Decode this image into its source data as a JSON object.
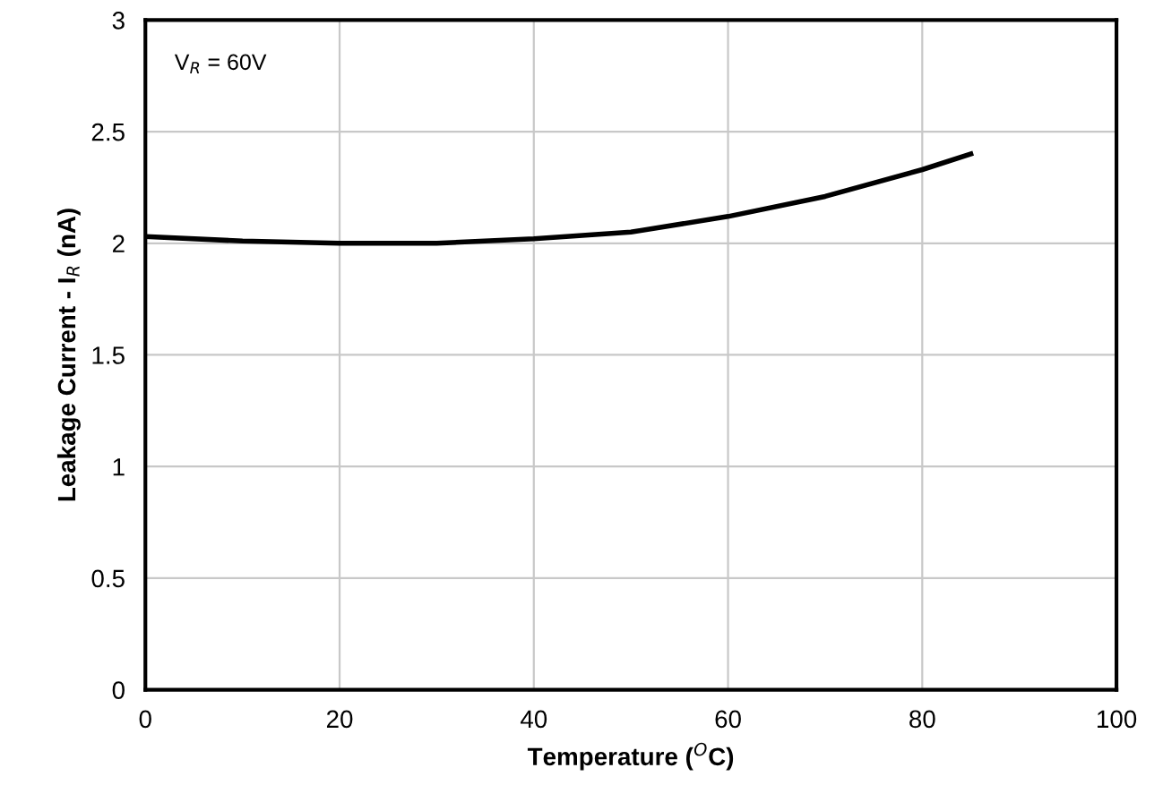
{
  "chart_data": {
    "type": "line",
    "xlabel": "Temperature ($^{O}$C)",
    "ylabel": "Leakage Current - I$_{R}$ (nA)",
    "annotations": [
      "V$_{R}$ = 60V"
    ],
    "x": [
      0,
      10,
      20,
      30,
      40,
      50,
      60,
      70,
      80,
      85
    ],
    "series": [
      {
        "color": "#000000",
        "values": [
          2.03,
          2.01,
          2.0,
          2.0,
          2.02,
          2.05,
          2.12,
          2.21,
          2.33,
          2.4
        ]
      }
    ],
    "xlim": [
      0,
      100
    ],
    "xticks": [
      0,
      20,
      40,
      60,
      80,
      100
    ],
    "ylim": [
      0,
      3
    ],
    "yticks": [
      0,
      0.5,
      1,
      1.5,
      2,
      2.5,
      3
    ],
    "grid": true,
    "legend": false,
    "marker": "none",
    "line_style": "solid"
  }
}
